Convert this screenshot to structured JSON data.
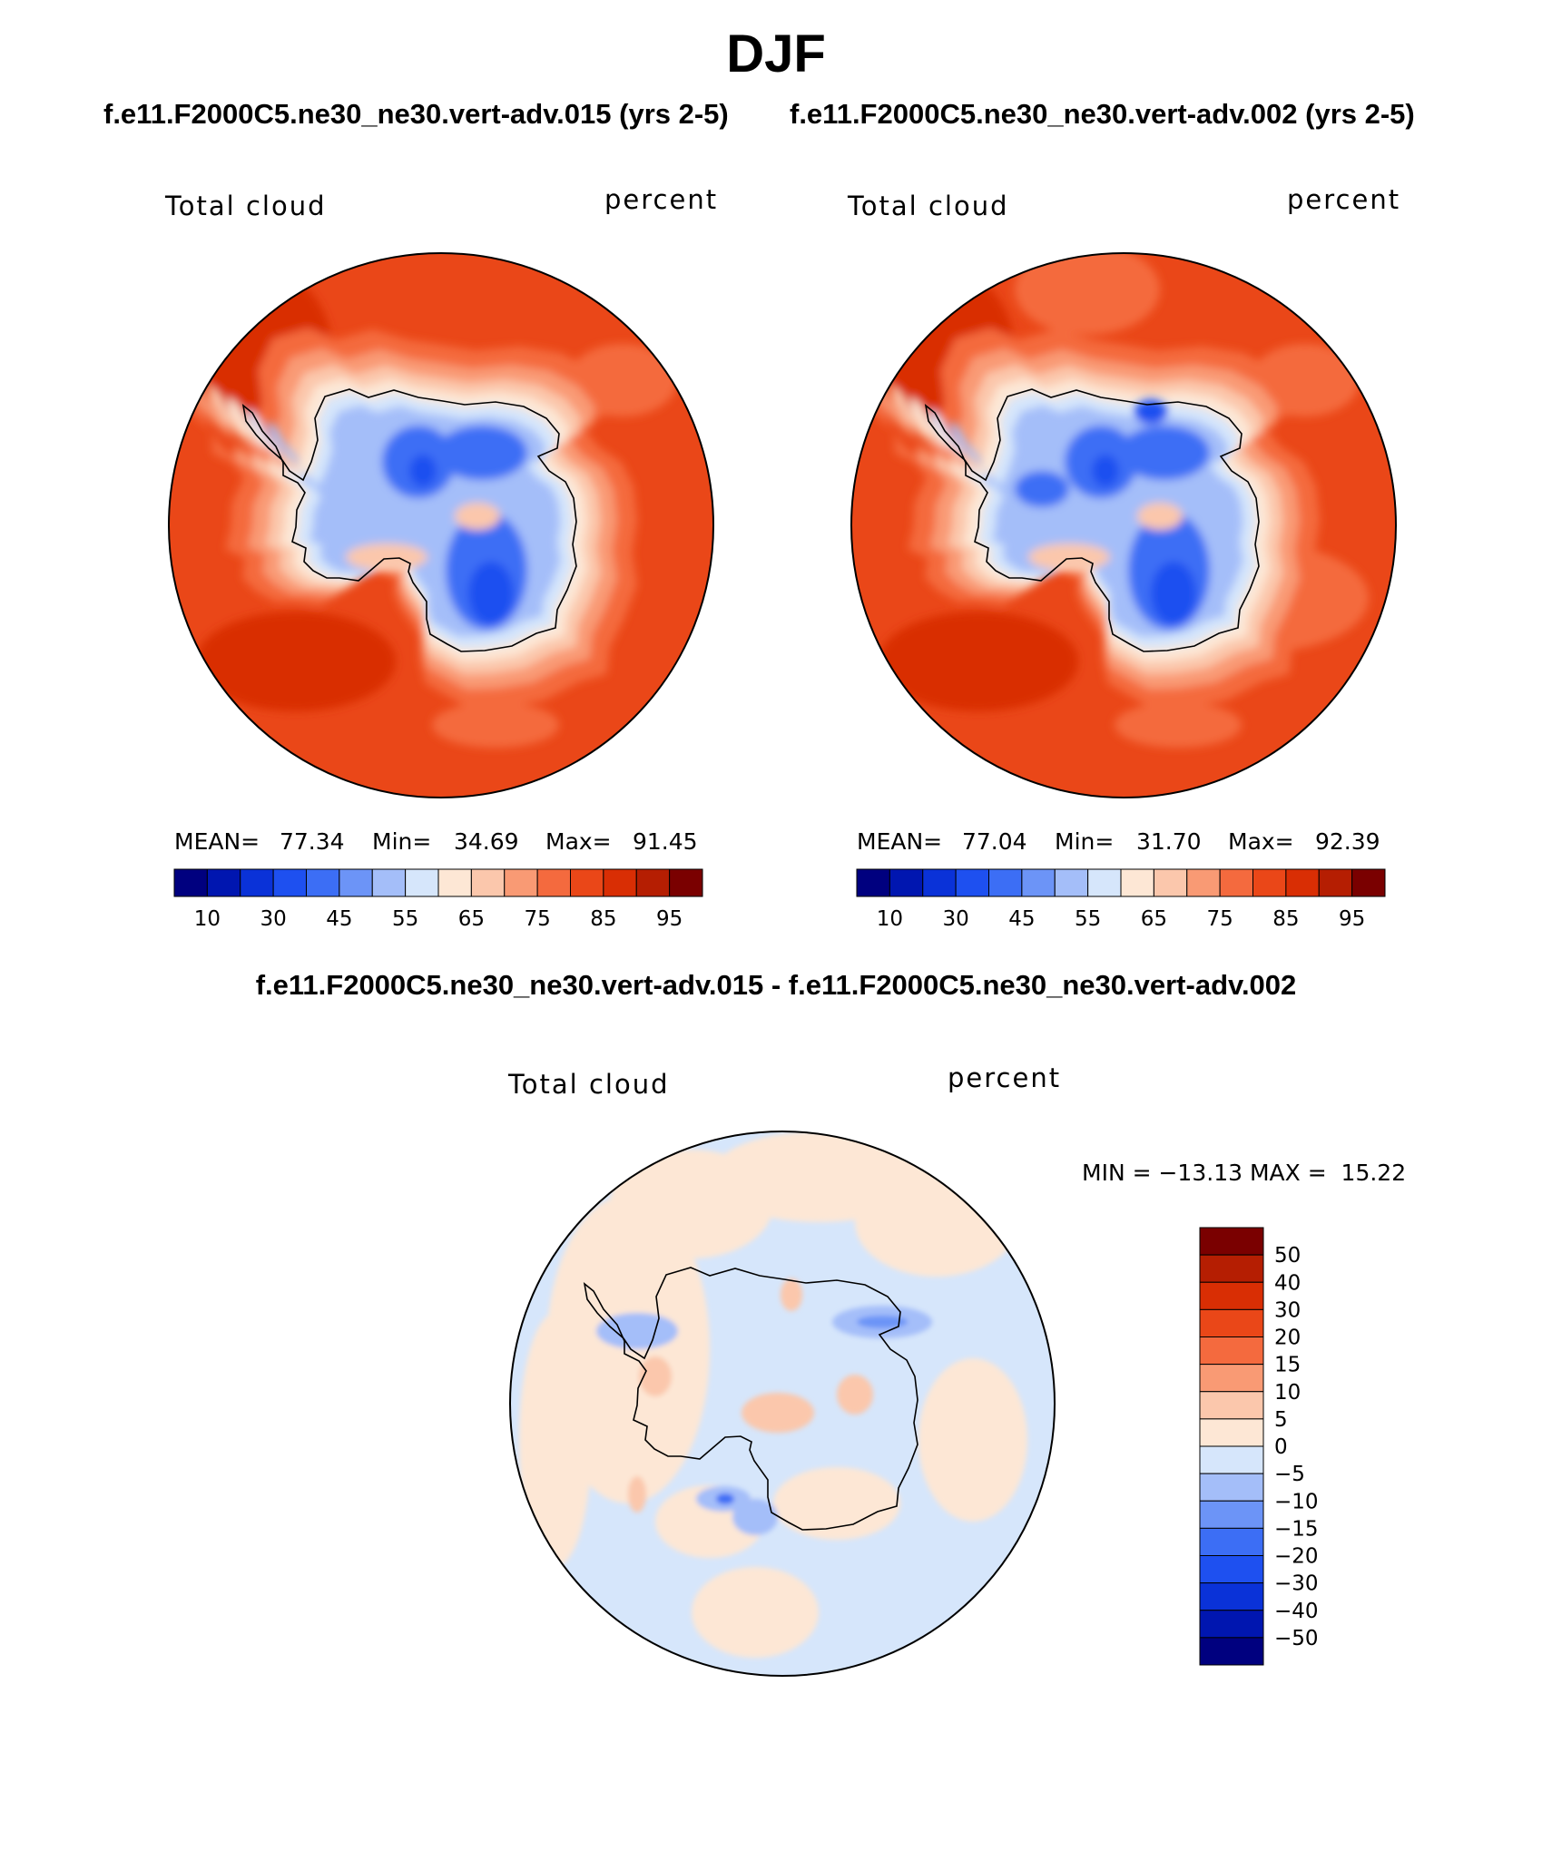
{
  "title": "DJF",
  "subtitles": {
    "left": "f.e11.F2000C5.ne30_ne30.vert-adv.015 (yrs 2-5)",
    "right": "f.e11.F2000C5.ne30_ne30.vert-adv.002 (yrs 2-5)",
    "diff": "f.e11.F2000C5.ne30_ne30.vert-adv.015 - f.e11.F2000C5.ne30_ne30.vert-adv.002"
  },
  "chart_data": [
    {
      "type": "heatmap",
      "map": "south-polar-stereographic",
      "variable_label": "Total cloud",
      "units_label": "percent",
      "stats": {
        "mean_label": "MEAN=",
        "mean": "77.34",
        "min_label": "Min=",
        "min": "34.69",
        "max_label": "Max=",
        "max": "91.45"
      },
      "colorbar": {
        "levels": [
          "10",
          "30",
          "45",
          "55",
          "65",
          "75",
          "85",
          "95"
        ],
        "colors": [
          "#00007f",
          "#0016b0",
          "#0a32d8",
          "#1e50f0",
          "#3c6ef5",
          "#6c94f7",
          "#a4bef9",
          "#d6e6fb",
          "#fde7d5",
          "#fbc7ac",
          "#f99a74",
          "#f46a3e",
          "#ea4718",
          "#d92e04",
          "#b51e02",
          "#7a0000"
        ]
      }
    },
    {
      "type": "heatmap",
      "map": "south-polar-stereographic",
      "variable_label": "Total cloud",
      "units_label": "percent",
      "stats": {
        "mean_label": "MEAN=",
        "mean": "77.04",
        "min_label": "Min=",
        "min": "31.70",
        "max_label": "Max=",
        "max": "92.39"
      },
      "colorbar": {
        "levels": [
          "10",
          "30",
          "45",
          "55",
          "65",
          "75",
          "85",
          "95"
        ],
        "colors": [
          "#00007f",
          "#0016b0",
          "#0a32d8",
          "#1e50f0",
          "#3c6ef5",
          "#6c94f7",
          "#a4bef9",
          "#d6e6fb",
          "#fde7d5",
          "#fbc7ac",
          "#f99a74",
          "#f46a3e",
          "#ea4718",
          "#d92e04",
          "#b51e02",
          "#7a0000"
        ]
      }
    },
    {
      "type": "heatmap",
      "map": "south-polar-stereographic",
      "variable_label": "Total cloud",
      "units_label": "percent",
      "minmax_text": "MIN = −13.13 MAX =  15.22",
      "colorbar": {
        "levels": [
          "50",
          "40",
          "30",
          "20",
          "15",
          "10",
          "5",
          "0",
          "−5",
          "−10",
          "−15",
          "−20",
          "−30",
          "−40",
          "−50"
        ],
        "colors": [
          "#7a0000",
          "#b51e02",
          "#d92e04",
          "#ea4718",
          "#f46a3e",
          "#f99a74",
          "#fbc7ac",
          "#fde7d5",
          "#d6e6fb",
          "#a4bef9",
          "#6c94f7",
          "#3c6ef5",
          "#1e50f0",
          "#0a32d8",
          "#0016b0",
          "#00007f"
        ]
      }
    }
  ]
}
